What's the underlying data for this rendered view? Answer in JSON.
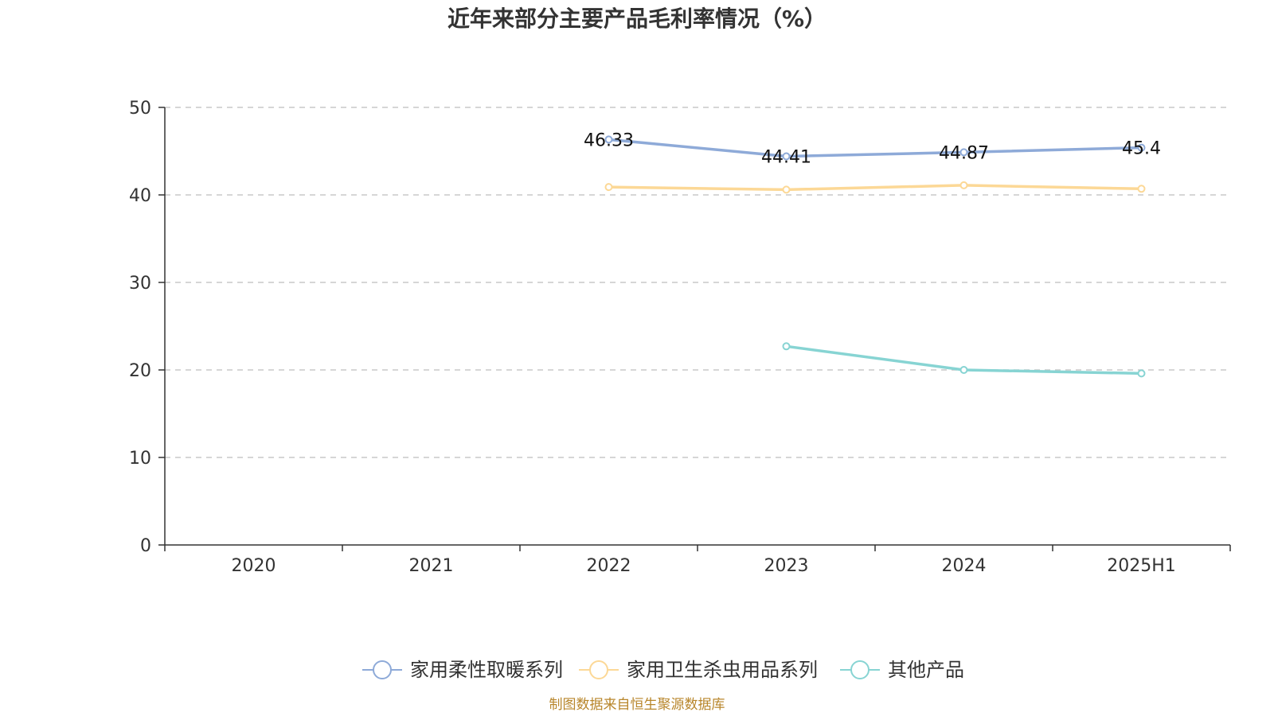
{
  "chart_data": {
    "type": "line",
    "title": "近年来部分主要产品毛利率情况（%）",
    "xlabel": "",
    "ylabel": "",
    "categories": [
      "2020",
      "2021",
      "2022",
      "2023",
      "2024",
      "2025H1"
    ],
    "ylim": [
      0,
      50
    ],
    "yticks": [
      0,
      10,
      20,
      30,
      40,
      50
    ],
    "grid": true,
    "legend_position": "bottom",
    "series": [
      {
        "name": "家用柔性取暖系列",
        "color": "#8eaad8",
        "values": [
          null,
          null,
          46.33,
          44.41,
          44.87,
          45.4
        ],
        "labels": [
          "",
          "",
          "46.33",
          "44.41",
          "44.87",
          "45.4"
        ]
      },
      {
        "name": "家用卫生杀虫用品系列",
        "color": "#fcd896",
        "values": [
          null,
          null,
          40.9,
          40.6,
          41.1,
          40.7
        ]
      },
      {
        "name": "其他产品",
        "color": "#87d4d3",
        "values": [
          null,
          null,
          null,
          22.7,
          20.0,
          19.6
        ]
      }
    ],
    "source": "制图数据来自恒生聚源数据库"
  }
}
